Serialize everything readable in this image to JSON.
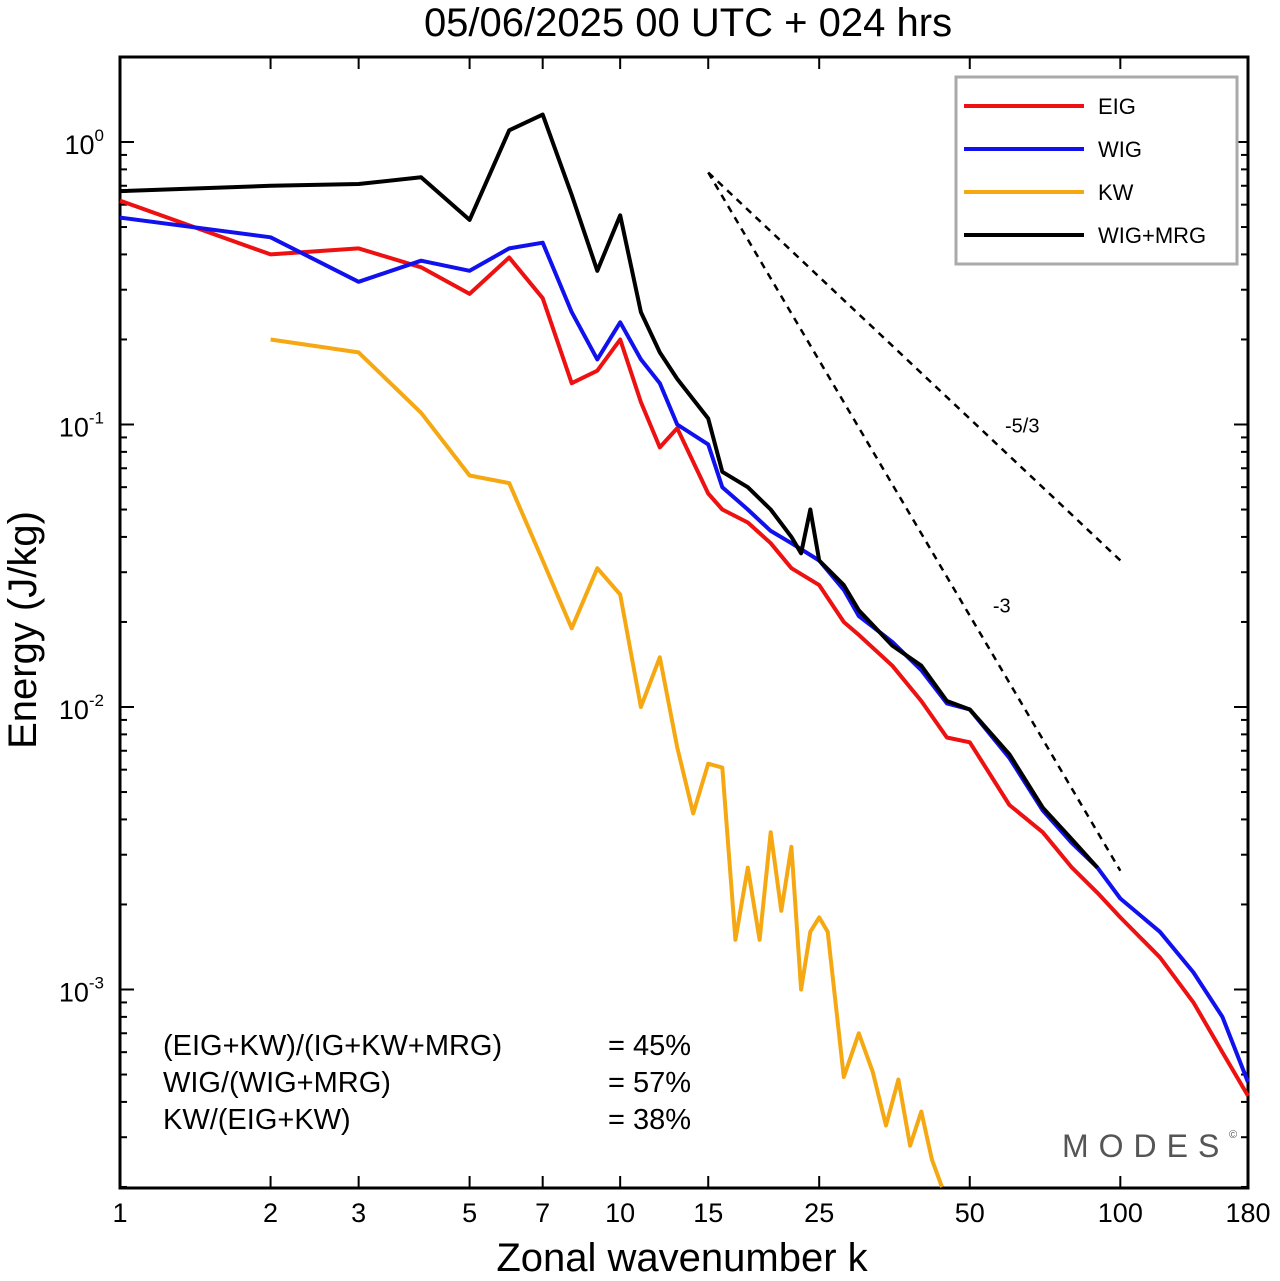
{
  "chart_data": {
    "type": "line",
    "title": "05/06/2025  00 UTC  + 024 hrs",
    "xlabel": "Zonal wavenumber k",
    "ylabel": "Energy (J/kg)",
    "xscale": "log",
    "yscale": "log",
    "xlim": [
      1,
      180
    ],
    "ylim": [
      0.0002,
      2.0
    ],
    "grid": false,
    "legend_position": "top-right",
    "xticks": [
      1,
      2,
      3,
      5,
      7,
      10,
      15,
      25,
      50,
      100,
      180
    ],
    "xtick_labels": [
      "1",
      "2",
      "3",
      "5",
      "7",
      "10",
      "15",
      "25",
      "50",
      "100",
      "180"
    ],
    "yticks": [
      1,
      0.1,
      0.01,
      0.001
    ],
    "ytick_labels": [
      {
        "base": "10",
        "exp": "0"
      },
      {
        "base": "10",
        "exp": "-1"
      },
      {
        "base": "10",
        "exp": "-2"
      },
      {
        "base": "10",
        "exp": "-3"
      }
    ],
    "series": [
      {
        "name": "EIG",
        "color": "#ee1111",
        "x": [
          1,
          2,
          3,
          4,
          5,
          6,
          7,
          8,
          9,
          10,
          11,
          12,
          13,
          15,
          16,
          18,
          20,
          22,
          25,
          28,
          30,
          35,
          40,
          45,
          50,
          60,
          70,
          80,
          90,
          100,
          120,
          140,
          160,
          180
        ],
        "y": [
          0.62,
          0.4,
          0.42,
          0.36,
          0.29,
          0.39,
          0.28,
          0.14,
          0.155,
          0.2,
          0.12,
          0.083,
          0.097,
          0.057,
          0.05,
          0.045,
          0.038,
          0.031,
          0.027,
          0.02,
          0.018,
          0.014,
          0.0105,
          0.0078,
          0.0075,
          0.0045,
          0.0036,
          0.0027,
          0.0022,
          0.0018,
          0.0013,
          0.0009,
          0.0006,
          0.00042
        ]
      },
      {
        "name": "WIG",
        "color": "#1111ee",
        "x": [
          1,
          2,
          3,
          4,
          5,
          6,
          7,
          8,
          9,
          10,
          11,
          12,
          13,
          15,
          16,
          18,
          20,
          22,
          25,
          28,
          30,
          35,
          40,
          45,
          50,
          60,
          70,
          80,
          90,
          100,
          120,
          140,
          160,
          180
        ],
        "y": [
          0.54,
          0.46,
          0.32,
          0.38,
          0.35,
          0.42,
          0.44,
          0.25,
          0.17,
          0.23,
          0.17,
          0.14,
          0.1,
          0.085,
          0.06,
          0.05,
          0.042,
          0.038,
          0.033,
          0.026,
          0.021,
          0.017,
          0.0135,
          0.0103,
          0.0098,
          0.0066,
          0.0043,
          0.0033,
          0.0027,
          0.0021,
          0.0016,
          0.00115,
          0.0008,
          0.00047
        ]
      },
      {
        "name": "KW",
        "color": "#f5a811",
        "x": [
          2,
          3,
          4,
          5,
          6,
          7,
          8,
          9,
          10,
          11,
          12,
          13,
          14,
          15,
          16,
          17,
          18,
          19,
          20,
          21,
          22,
          23,
          24,
          25,
          26,
          28,
          30,
          32,
          34,
          36,
          38,
          40,
          42,
          44
        ],
        "y": [
          0.2,
          0.18,
          0.11,
          0.066,
          0.062,
          0.033,
          0.019,
          0.031,
          0.025,
          0.01,
          0.015,
          0.0072,
          0.0042,
          0.0063,
          0.0061,
          0.0015,
          0.0027,
          0.0015,
          0.0036,
          0.0019,
          0.0032,
          0.001,
          0.0016,
          0.0018,
          0.0016,
          0.00049,
          0.0007,
          0.00051,
          0.00033,
          0.00048,
          0.00028,
          0.00037,
          0.00025,
          0.0002
        ]
      },
      {
        "name": "WIG+MRG",
        "color": "#000000",
        "x": [
          1,
          2,
          3,
          4,
          5,
          6,
          7,
          8,
          9,
          10,
          11,
          12,
          13,
          15,
          16,
          18,
          20,
          22,
          23,
          24,
          25,
          28,
          30,
          35,
          40,
          45,
          50,
          60,
          70,
          80,
          90
        ],
        "y": [
          0.67,
          0.7,
          0.71,
          0.75,
          0.53,
          1.1,
          1.25,
          0.65,
          0.35,
          0.55,
          0.25,
          0.18,
          0.145,
          0.105,
          0.068,
          0.06,
          0.05,
          0.04,
          0.035,
          0.05,
          0.033,
          0.027,
          0.022,
          0.0165,
          0.014,
          0.0105,
          0.0098,
          0.0068,
          0.0044,
          0.0034,
          0.0027
        ]
      }
    ],
    "reference_lines": [
      {
        "label": "-5/3",
        "slope": -1.6667,
        "x": [
          15,
          100
        ],
        "y0": 0.78
      },
      {
        "label": "-3",
        "slope": -3,
        "x": [
          15,
          100
        ],
        "y0": 0.78
      }
    ],
    "stats": [
      {
        "label": "(EIG+KW)/(IG+KW+MRG)",
        "value": "= 45%"
      },
      {
        "label": "WIG/(WIG+MRG)",
        "value": "= 57%"
      },
      {
        "label": "KW/(EIG+KW)",
        "value": "= 38%"
      }
    ],
    "watermark": "MODES"
  }
}
